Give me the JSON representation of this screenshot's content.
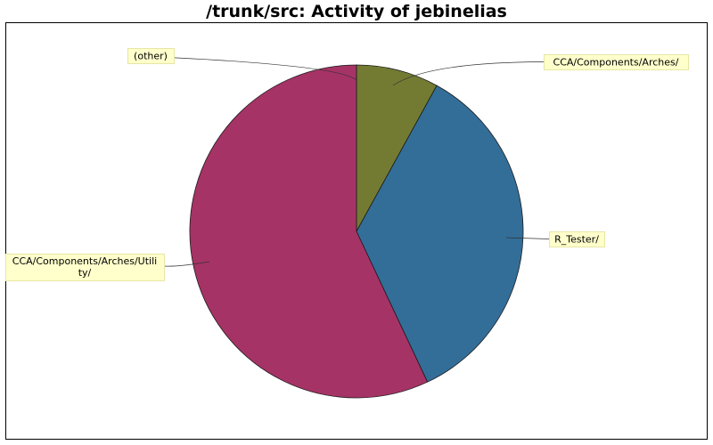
{
  "chart_data": {
    "type": "pie",
    "title": "/trunk/src: Activity of jebinelias",
    "start_angle_deg": 90,
    "direction": "clockwise",
    "slices": [
      {
        "label": "CCA/Components/Arches/",
        "value": 8.0,
        "color": "#737b33"
      },
      {
        "label": "R_Tester/",
        "value": 35.0,
        "color": "#336e99"
      },
      {
        "label": "CCA/Components/Arches/Utility/",
        "value": 57.0,
        "color": "#a63366"
      },
      {
        "label": "(other)",
        "value": 0.0,
        "color": "#c9c933"
      }
    ],
    "legend": "callout-labels"
  },
  "colors": {
    "label_box_fill": "#ffffcc",
    "label_box_stroke": "#e6e6a6",
    "frame": "#000000",
    "slice_stroke": "#1a1a1a",
    "leader": "#333333"
  }
}
